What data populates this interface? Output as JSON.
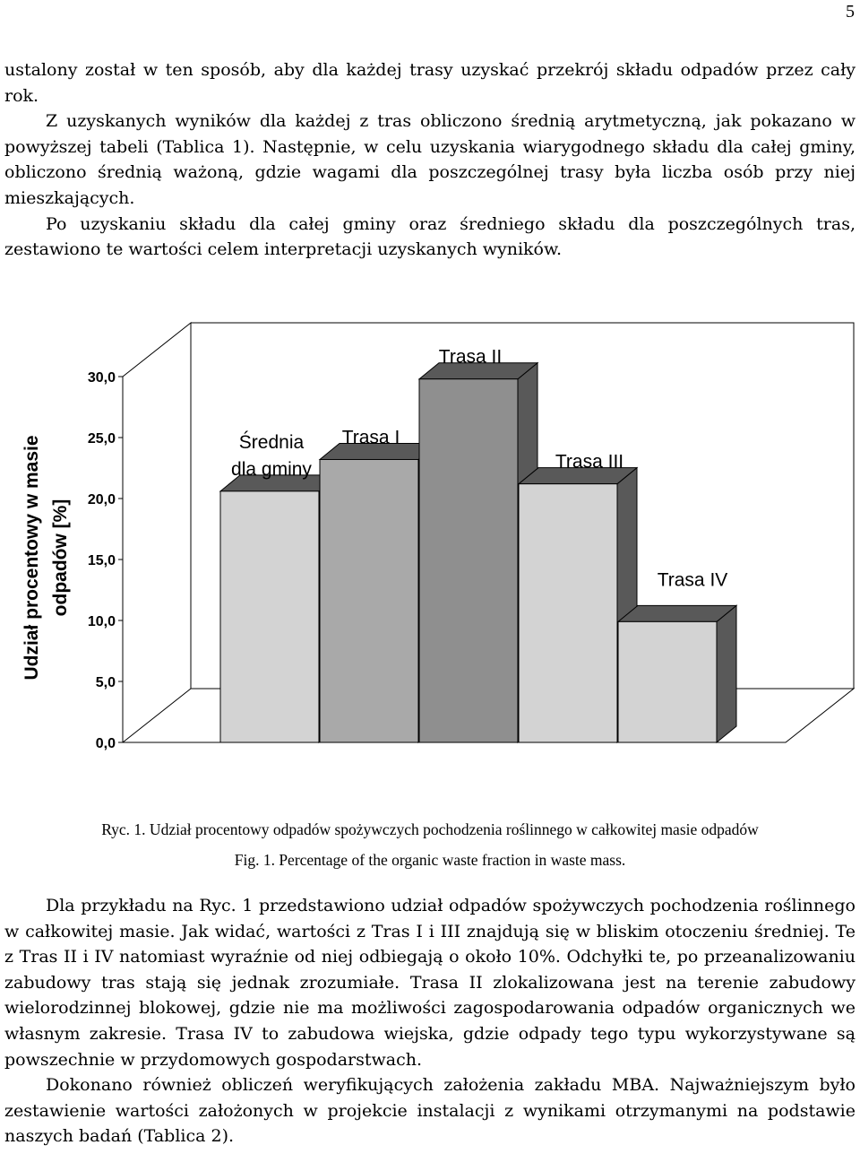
{
  "page_number": "5",
  "paragraphs_top": [
    {
      "text": "ustalony został w ten sposób, aby dla każdej trasy uzyskać przekrój składu odpadów przez cały rok.",
      "indent": false
    },
    {
      "text": "Z uzyskanych wyników dla każdej z tras obliczono średnią arytmetyczną, jak pokazano w powyższej tabeli (Tablica 1). Następnie, w celu uzyskania wiarygodnego składu dla całej gminy, obliczono średnią ważoną, gdzie wagami dla poszczególnej trasy była liczba osób przy niej mieszkających.",
      "indent": true
    },
    {
      "text": "Po uzyskaniu składu dla całej gminy oraz średniego składu dla poszczególnych tras, zestawiono te wartości celem interpretacji uzyskanych wyników.",
      "indent": true
    }
  ],
  "chart_data": {
    "type": "bar",
    "title": "",
    "categories": [
      "Średnia dla gminy",
      "Trasa I",
      "Trasa II",
      "Trasa III",
      "Trasa IV"
    ],
    "category_label_lines": [
      [
        "Średnia",
        "dla gminy"
      ],
      [
        "Trasa I"
      ],
      [
        "Trasa II"
      ],
      [
        "Trasa III"
      ],
      [
        "Trasa IV"
      ]
    ],
    "values": [
      20.6,
      23.2,
      29.8,
      21.2,
      9.9
    ],
    "bar_colors": [
      "#d3d3d3",
      "#a9a9a9",
      "#8f8f8f",
      "#d3d3d3",
      "#d3d3d3"
    ],
    "side_colors": [
      "#595959",
      "#595959",
      "#595959",
      "#595959",
      "#595959"
    ],
    "ylabel": "Udział procentowy w masie odpadów [%]",
    "ylabel_lines": [
      "Udział procentowy w masie",
      "odpadów [%]"
    ],
    "xlabel": "",
    "ylim": [
      0,
      30
    ],
    "yticks": [
      "0,0",
      "5,0",
      "10,0",
      "15,0",
      "20,0",
      "25,0",
      "30,0"
    ],
    "grid": false,
    "legend": "none",
    "style": "3d-bar"
  },
  "captions": {
    "pl": "Ryc. 1. Udział procentowy odpadów spożywczych pochodzenia roślinnego w całkowitej masie odpadów",
    "en": "Fig. 1. Percentage of the organic waste fraction in waste mass."
  },
  "paragraphs_bottom": [
    {
      "text": "Dla przykładu na Ryc. 1 przedstawiono udział odpadów spożywczych pochodzenia roślinnego w całkowitej masie. Jak widać, wartości z Tras I i III znajdują się w bliskim otoczeniu średniej. Te z Tras II i IV natomiast wyraźnie od niej odbiegają o około 10%. Odchyłki te, po przeanalizowaniu zabudowy tras stają się jednak zrozumiałe. Trasa II zlokalizowana jest na terenie zabudowy wielorodzinnej blokowej, gdzie nie ma możliwości zagospodarowania odpadów organicznych we własnym zakresie. Trasa IV to zabudowa wiejska, gdzie odpady tego typu wykorzystywane są powszechnie w przydomowych gospodarstwach.",
      "indent": true
    },
    {
      "text": "Dokonano również obliczeń weryfikujących założenia zakładu MBA. Najważniejszym było zestawienie wartości założonych w projekcie instalacji z wynikami otrzymanymi na podstawie naszych badań (Tablica 2).",
      "indent": true
    }
  ]
}
